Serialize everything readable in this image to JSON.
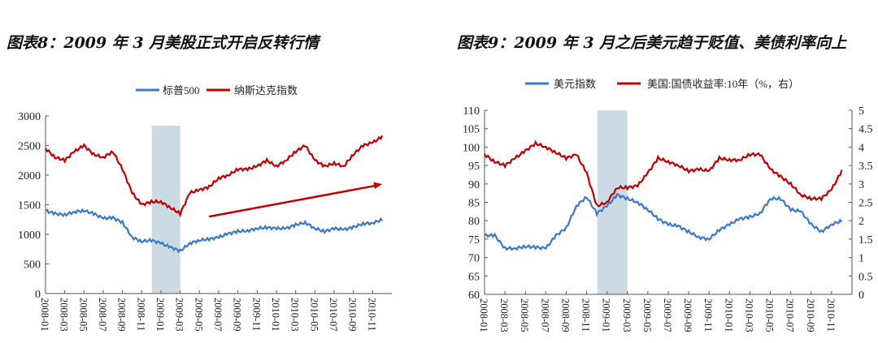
{
  "titles": [
    "图表8：2009 年 3 月美股正式开启反转行情",
    "图表9：2009 年 3 月之后美元趋于贬值、美债利率向上"
  ],
  "chart_data": [
    {
      "type": "line",
      "title": "",
      "x": [
        "2008-01",
        "2008-02",
        "2008-03",
        "2008-04",
        "2008-05",
        "2008-06",
        "2008-07",
        "2008-08",
        "2008-09",
        "2008-10",
        "2008-11",
        "2008-12",
        "2009-01",
        "2009-02",
        "2009-03",
        "2009-04",
        "2009-05",
        "2009-06",
        "2009-07",
        "2009-08",
        "2009-09",
        "2009-10",
        "2009-11",
        "2009-12",
        "2010-01",
        "2010-02",
        "2010-03",
        "2010-04",
        "2010-05",
        "2010-06",
        "2010-07",
        "2010-08",
        "2010-09",
        "2010-10",
        "2010-11",
        "2010-12"
      ],
      "xticks": [
        "2008-01",
        "2008-03",
        "2008-05",
        "2008-07",
        "2008-09",
        "2008-11",
        "2009-01",
        "2009-03",
        "2009-05",
        "2009-07",
        "2009-09",
        "2009-11",
        "2010-01",
        "2010-03",
        "2010-05",
        "2010-07",
        "2010-09",
        "2010-11"
      ],
      "ylim": [
        0,
        3000
      ],
      "yticks": [
        0,
        500,
        1000,
        1500,
        2000,
        2500,
        3000
      ],
      "legend_position": "top",
      "shaded_period": [
        "2008-12",
        "2009-03"
      ],
      "shade_color": "#ccdbe3",
      "arrow": {
        "from": [
          "2009-06",
          1300
        ],
        "to": [
          "2010-12",
          1850
        ],
        "color": "#c00000"
      },
      "series": [
        {
          "name": "标普500",
          "color": "#3a78c8",
          "axis": "left",
          "values": [
            1400,
            1350,
            1330,
            1380,
            1400,
            1350,
            1270,
            1280,
            1200,
            950,
            880,
            900,
            850,
            780,
            720,
            850,
            900,
            920,
            950,
            1010,
            1050,
            1060,
            1100,
            1115,
            1100,
            1100,
            1160,
            1200,
            1100,
            1050,
            1100,
            1080,
            1120,
            1180,
            1190,
            1250
          ]
        },
        {
          "name": "纳斯达克指数",
          "color": "#c00000",
          "axis": "left",
          "values": [
            2450,
            2300,
            2250,
            2400,
            2500,
            2350,
            2300,
            2400,
            2100,
            1700,
            1500,
            1550,
            1550,
            1450,
            1350,
            1700,
            1750,
            1800,
            1950,
            2000,
            2100,
            2100,
            2150,
            2250,
            2150,
            2250,
            2400,
            2500,
            2250,
            2150,
            2200,
            2150,
            2350,
            2500,
            2550,
            2650
          ]
        }
      ]
    },
    {
      "type": "line",
      "title": "",
      "x": [
        "2008-01",
        "2008-02",
        "2008-03",
        "2008-04",
        "2008-05",
        "2008-06",
        "2008-07",
        "2008-08",
        "2008-09",
        "2008-10",
        "2008-11",
        "2008-12",
        "2009-01",
        "2009-02",
        "2009-03",
        "2009-04",
        "2009-05",
        "2009-06",
        "2009-07",
        "2009-08",
        "2009-09",
        "2009-10",
        "2009-11",
        "2009-12",
        "2010-01",
        "2010-02",
        "2010-03",
        "2010-04",
        "2010-05",
        "2010-06",
        "2010-07",
        "2010-08",
        "2010-09",
        "2010-10",
        "2010-11",
        "2010-12"
      ],
      "xticks": [
        "2008-01",
        "2008-03",
        "2008-05",
        "2008-07",
        "2008-09",
        "2008-11",
        "2009-01",
        "2009-03",
        "2009-05",
        "2009-07",
        "2009-09",
        "2009-11",
        "2010-01",
        "2010-03",
        "2010-05",
        "2010-07",
        "2010-09",
        "2010-11"
      ],
      "ylim": [
        60,
        110
      ],
      "yticks": [
        60,
        65,
        70,
        75,
        80,
        85,
        90,
        95,
        100,
        105,
        110
      ],
      "y2lim": [
        0,
        5
      ],
      "y2ticks": [
        "0",
        "0.5",
        "1",
        "1.5",
        "2",
        "2.5",
        "3",
        "3.5",
        "4",
        "4.5",
        "5"
      ],
      "legend_position": "top",
      "shaded_period": [
        "2008-12",
        "2009-03"
      ],
      "shade_color": "#ccdbe3",
      "series": [
        {
          "name": "美元指数",
          "color": "#3a78c8",
          "axis": "left",
          "values": [
            76,
            76,
            72.5,
            72.5,
            73,
            72.8,
            72.5,
            76,
            78,
            84,
            86.5,
            82,
            84,
            87,
            86,
            85,
            83,
            80.5,
            79,
            78.5,
            77,
            75.5,
            75,
            77.5,
            79,
            80.5,
            81,
            82,
            86,
            86,
            83,
            82.5,
            79,
            77,
            79,
            80
          ]
        },
        {
          "name": "美国:国债收益率:10年（%，右）",
          "color": "#c00000",
          "axis": "right",
          "values": [
            3.8,
            3.6,
            3.5,
            3.7,
            3.9,
            4.1,
            4.0,
            3.85,
            3.7,
            3.8,
            3.3,
            2.4,
            2.5,
            2.9,
            2.9,
            2.95,
            3.3,
            3.7,
            3.6,
            3.5,
            3.35,
            3.4,
            3.35,
            3.7,
            3.65,
            3.65,
            3.8,
            3.8,
            3.4,
            3.2,
            3.0,
            2.7,
            2.6,
            2.6,
            2.85,
            3.35
          ]
        }
      ]
    }
  ]
}
